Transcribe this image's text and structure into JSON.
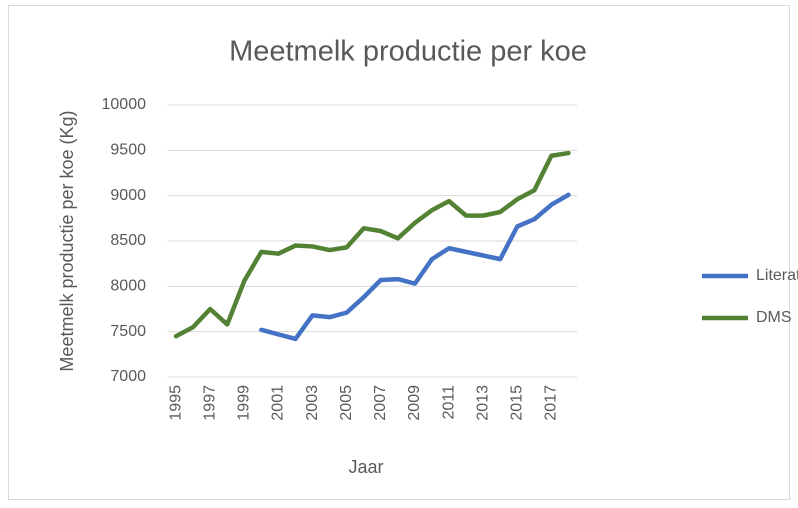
{
  "chart_data": {
    "type": "line",
    "title": "Meetmelk productie per koe",
    "x_label": "Jaar",
    "y_label": "Meetmelk productie per koe (Kg)",
    "categories": [
      "1995",
      null,
      "1997",
      null,
      "1999",
      null,
      "2001",
      null,
      "2003",
      null,
      "2005",
      null,
      "2007",
      null,
      "2009",
      null,
      "2011",
      null,
      "2013",
      null,
      "2015",
      null,
      "2017",
      null
    ],
    "series": [
      {
        "name": "Literatuur",
        "color": "#4472c4",
        "values": [
          null,
          null,
          null,
          null,
          null,
          7520,
          7470,
          7420,
          7680,
          7660,
          7710,
          7880,
          8070,
          8080,
          8030,
          8300,
          8420,
          8380,
          8340,
          8300,
          8660,
          8740,
          8900,
          9010
        ]
      },
      {
        "name": "DMS",
        "color": "#548235",
        "values": [
          7450,
          7550,
          7750,
          7580,
          8060,
          8380,
          8360,
          8450,
          8440,
          8400,
          8430,
          8640,
          8610,
          8530,
          8700,
          8840,
          8940,
          8780,
          8780,
          8820,
          8960,
          9060,
          9440,
          9470
        ]
      }
    ],
    "ylim": [
      7000,
      10000
    ],
    "yticks": [
      7000,
      7500,
      8000,
      8500,
      9000,
      9500,
      10000
    ],
    "grid": true,
    "legend": "right"
  }
}
